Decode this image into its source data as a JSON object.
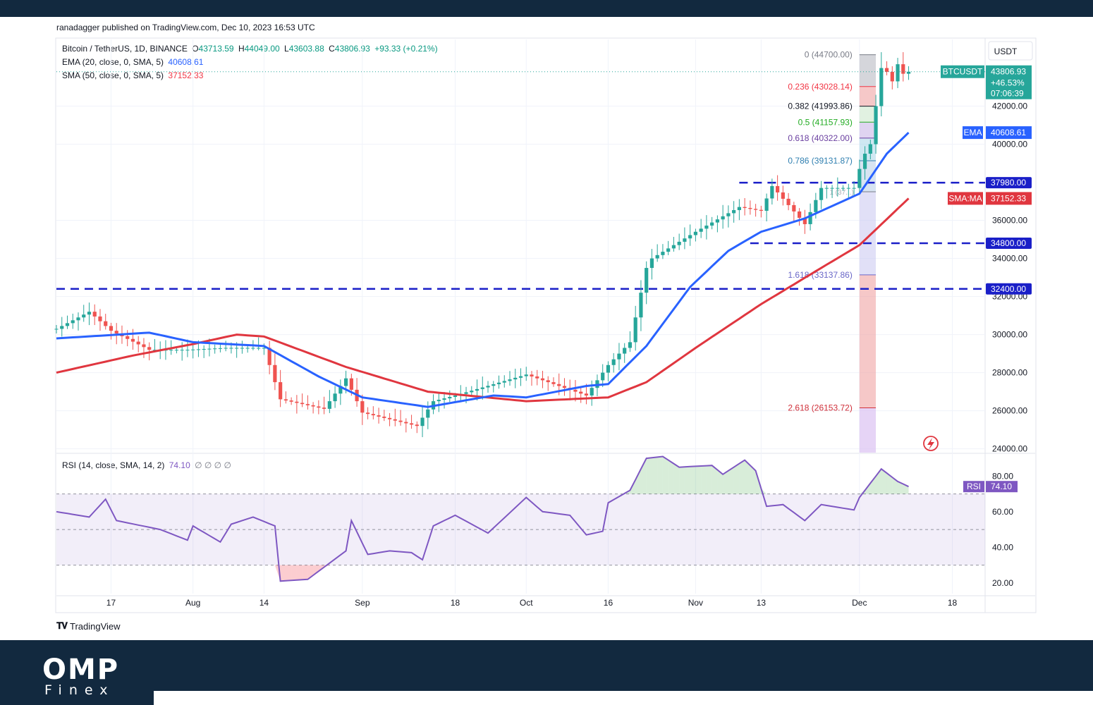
{
  "page": {
    "published": "ranadagger published on TradingView.com, Dec 10, 2023 16:53 UTC",
    "footer_logo": "TradingView",
    "brand_name": "OMP",
    "brand_sub": "Finex"
  },
  "colors": {
    "ema": "#2962ff",
    "sma": "#e0363f",
    "up": "#26a69a",
    "down": "#ef5350",
    "level": "#1a1fc8",
    "rsi": "#7e57c2"
  },
  "legend": {
    "symbol": "Bitcoin / TetherUS, 1D, BINANCE",
    "o_label": "O",
    "o": "43713.59",
    "h_label": "H",
    "h": "44049.00",
    "l_label": "L",
    "l": "43603.88",
    "c_label": "C",
    "c": "43806.93",
    "change": "+93.33 (+0.21%)",
    "ema_label": "EMA (20, close, 0, SMA, 5)",
    "ema_value": "40608.61",
    "sma_label": "SMA (50, close, 0, SMA, 5)",
    "sma_value": "37152.33",
    "rsi_label": "RSI (14, close, SMA, 14, 2)",
    "rsi_value": "74.10",
    "rsi_extra": "∅ ∅ ∅ ∅"
  },
  "chart_data": {
    "type": "candlestick",
    "currency": "USDT",
    "price_ticks": [
      "24000.00",
      "26000.00",
      "28000.00",
      "30000.00",
      "32000.00",
      "34000.00",
      "36000.00",
      "40000.00",
      "42000.00"
    ],
    "time_ticks": [
      {
        "label": "17",
        "day": "2023-07-17"
      },
      {
        "label": "Aug",
        "day": "2023-08-01"
      },
      {
        "label": "14",
        "day": "2023-08-14"
      },
      {
        "label": "Sep",
        "day": "2023-09-01"
      },
      {
        "label": "18",
        "day": "2023-09-18"
      },
      {
        "label": "Oct",
        "day": "2023-10-01"
      },
      {
        "label": "16",
        "day": "2023-10-16"
      },
      {
        "label": "Nov",
        "day": "2023-11-01"
      },
      {
        "label": "13",
        "day": "2023-11-13"
      },
      {
        "label": "Dec",
        "day": "2023-12-01"
      },
      {
        "label": "18",
        "day": "2023-12-18"
      }
    ],
    "y_range": [
      23800,
      45500
    ],
    "x_range": [
      "2023-07-07",
      "2023-12-24"
    ],
    "close_anchors": [
      [
        "2023-07-07",
        30300
      ],
      [
        "2023-07-13",
        31200
      ],
      [
        "2023-07-17",
        30200
      ],
      [
        "2023-07-24",
        29200
      ],
      [
        "2023-07-31",
        29200
      ],
      [
        "2023-08-07",
        29300
      ],
      [
        "2023-08-14",
        29300
      ],
      [
        "2023-08-17",
        26600
      ],
      [
        "2023-08-25",
        26100
      ],
      [
        "2023-08-29",
        27700
      ],
      [
        "2023-09-01",
        25900
      ],
      [
        "2023-09-11",
        25200
      ],
      [
        "2023-09-14",
        26500
      ],
      [
        "2023-09-18",
        26800
      ],
      [
        "2023-10-01",
        27900
      ],
      [
        "2023-10-12",
        26800
      ],
      [
        "2023-10-16",
        28400
      ],
      [
        "2023-10-20",
        29600
      ],
      [
        "2023-10-23",
        33500
      ],
      [
        "2023-10-24",
        34000
      ],
      [
        "2023-11-01",
        35400
      ],
      [
        "2023-11-09",
        36700
      ],
      [
        "2023-11-13",
        36500
      ],
      [
        "2023-11-15",
        37800
      ],
      [
        "2023-11-21",
        35800
      ],
      [
        "2023-11-24",
        37700
      ],
      [
        "2023-11-30",
        37700
      ],
      [
        "2023-12-01",
        38700
      ],
      [
        "2023-12-02",
        39500
      ],
      [
        "2023-12-03",
        40000
      ],
      [
        "2023-12-04",
        42000
      ],
      [
        "2023-12-05",
        44000
      ],
      [
        "2023-12-06",
        43800
      ],
      [
        "2023-12-07",
        43300
      ],
      [
        "2023-12-08",
        44200
      ],
      [
        "2023-12-09",
        43700
      ],
      [
        "2023-12-10",
        43806.93
      ]
    ],
    "ema_anchors": [
      [
        "2023-07-07",
        29800
      ],
      [
        "2023-07-24",
        30100
      ],
      [
        "2023-08-01",
        29600
      ],
      [
        "2023-08-14",
        29400
      ],
      [
        "2023-08-24",
        27800
      ],
      [
        "2023-09-01",
        26700
      ],
      [
        "2023-09-13",
        26200
      ],
      [
        "2023-09-25",
        26800
      ],
      [
        "2023-10-01",
        26700
      ],
      [
        "2023-10-12",
        27300
      ],
      [
        "2023-10-16",
        27400
      ],
      [
        "2023-10-23",
        29400
      ],
      [
        "2023-10-31",
        32500
      ],
      [
        "2023-11-07",
        34400
      ],
      [
        "2023-11-13",
        35400
      ],
      [
        "2023-11-21",
        36100
      ],
      [
        "2023-12-01",
        37400
      ],
      [
        "2023-12-06",
        39500
      ],
      [
        "2023-12-10",
        40608.61
      ]
    ],
    "sma_anchors": [
      [
        "2023-07-07",
        28000
      ],
      [
        "2023-07-21",
        28900
      ],
      [
        "2023-08-01",
        29500
      ],
      [
        "2023-08-09",
        30000
      ],
      [
        "2023-08-14",
        29900
      ],
      [
        "2023-08-29",
        28300
      ],
      [
        "2023-09-13",
        27000
      ],
      [
        "2023-10-01",
        26500
      ],
      [
        "2023-10-16",
        26700
      ],
      [
        "2023-10-23",
        27500
      ],
      [
        "2023-11-01",
        29300
      ],
      [
        "2023-11-13",
        31600
      ],
      [
        "2023-11-24",
        33500
      ],
      [
        "2023-12-01",
        34700
      ],
      [
        "2023-12-10",
        37152.33
      ]
    ],
    "horizontal_levels": [
      {
        "price": 37980,
        "label": "37980.00",
        "from": "2023-11-09"
      },
      {
        "price": 34800,
        "label": "34800.00",
        "from": "2023-11-11"
      },
      {
        "price": 32400,
        "label": "32400.00",
        "from": "2023-07-07"
      }
    ],
    "fibonacci": {
      "from_day": "2023-12-01",
      "to_day": "2023-12-04",
      "levels": [
        {
          "ratio": "0",
          "price": 44700,
          "text": "0 (44700.00)",
          "color": "#787b86"
        },
        {
          "ratio": "0.236",
          "price": 43028.14,
          "text": "0.236 (43028.14)",
          "color": "#f23645"
        },
        {
          "ratio": "0.382",
          "price": 41993.86,
          "text": "0.382 (41993.86)",
          "color": "#131722"
        },
        {
          "ratio": "0.5",
          "price": 41157.93,
          "text": "0.5 (41157.93)",
          "color": "#22ab22"
        },
        {
          "ratio": "0.618",
          "price": 40322.0,
          "text": "0.618 (40322.00)",
          "color": "#6a3fa0"
        },
        {
          "ratio": "0.786",
          "price": 39131.87,
          "text": "0.786 (39131.87)",
          "color": "#2f7fb0"
        },
        {
          "ratio": "1",
          "price": 37500,
          "text": "1 (37...)",
          "color": "#787b86"
        },
        {
          "ratio": "1.618",
          "price": 33137.86,
          "text": "1.618 (33137.86)",
          "color": "#6a67c8"
        },
        {
          "ratio": "2.618",
          "price": 26153.72,
          "text": "2.618 (26153.72)",
          "color": "#d0303a"
        }
      ]
    },
    "price_labels": [
      {
        "text": "BTCUSDT",
        "value": "43806.93",
        "change": "+46.53%",
        "time": "07:06:39"
      },
      {
        "text": "EMA",
        "value": "40608.61"
      },
      {
        "text": "SMA:MA",
        "value": "37152.33"
      }
    ],
    "rsi": {
      "ticks": [
        "20.00",
        "40.00",
        "60.00",
        "80.00"
      ],
      "upper": 70,
      "middle": 50,
      "lower": 30,
      "y_range": [
        14,
        92
      ],
      "anchors": [
        [
          "2023-07-07",
          60
        ],
        [
          "2023-07-13",
          57
        ],
        [
          "2023-07-16",
          67
        ],
        [
          "2023-07-18",
          55
        ],
        [
          "2023-07-26",
          50
        ],
        [
          "2023-07-31",
          44
        ],
        [
          "2023-08-01",
          52
        ],
        [
          "2023-08-06",
          43
        ],
        [
          "2023-08-08",
          53
        ],
        [
          "2023-08-12",
          57
        ],
        [
          "2023-08-16",
          52
        ],
        [
          "2023-08-17",
          21
        ],
        [
          "2023-08-22",
          22
        ],
        [
          "2023-08-29",
          38
        ],
        [
          "2023-08-30",
          55
        ],
        [
          "2023-09-02",
          36
        ],
        [
          "2023-09-06",
          38
        ],
        [
          "2023-09-10",
          37
        ],
        [
          "2023-09-12",
          33
        ],
        [
          "2023-09-14",
          52
        ],
        [
          "2023-09-18",
          58
        ],
        [
          "2023-09-24",
          48
        ],
        [
          "2023-10-01",
          68
        ],
        [
          "2023-10-04",
          60
        ],
        [
          "2023-10-09",
          58
        ],
        [
          "2023-10-12",
          47
        ],
        [
          "2023-10-15",
          49
        ],
        [
          "2023-10-16",
          65
        ],
        [
          "2023-10-20",
          72
        ],
        [
          "2023-10-23",
          90
        ],
        [
          "2023-10-26",
          91
        ],
        [
          "2023-10-29",
          85
        ],
        [
          "2023-11-04",
          86
        ],
        [
          "2023-11-06",
          81
        ],
        [
          "2023-11-10",
          89
        ],
        [
          "2023-11-12",
          83
        ],
        [
          "2023-11-14",
          63
        ],
        [
          "2023-11-17",
          64
        ],
        [
          "2023-11-21",
          55
        ],
        [
          "2023-11-24",
          64
        ],
        [
          "2023-11-30",
          61
        ],
        [
          "2023-12-01",
          68
        ],
        [
          "2023-12-05",
          84
        ],
        [
          "2023-12-08",
          77
        ],
        [
          "2023-12-10",
          74.1
        ]
      ]
    }
  }
}
